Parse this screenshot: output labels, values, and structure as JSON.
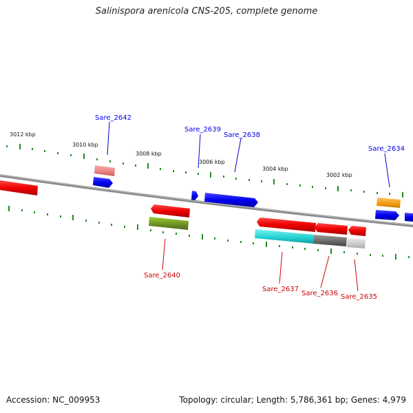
{
  "title": "Salinispora arenicola CNS-205, complete genome",
  "footer": {
    "accession": "Accession: NC_009953",
    "summary": "Topology: circular; Length: 5,786,361 bp; Genes: 4,979"
  },
  "scale_labels": [
    "3012 kbp",
    "3010 kbp",
    "3008 kbp",
    "3006 kbp",
    "3004 kbp",
    "3002 kbp"
  ],
  "forward_genes": [
    {
      "label": "Sare_2642",
      "color": "#0000ee"
    },
    {
      "label": "Sare_2639",
      "color": "#0000ee"
    },
    {
      "label": "Sare_2638",
      "color": "#0000ee"
    },
    {
      "label": "Sare_2634",
      "color": "#0000ee"
    }
  ],
  "reverse_genes": [
    {
      "label": "Sare_2640",
      "color": "#cc0000"
    },
    {
      "label": "Sare_2637",
      "color": "#cc0000"
    },
    {
      "label": "Sare_2636",
      "color": "#cc0000"
    },
    {
      "label": "Sare_2635",
      "color": "#cc0000"
    }
  ],
  "colors": {
    "backbone": "#888888",
    "tick": "#228b22",
    "forward_cds": "#0000ee",
    "reverse_cds": "#ee0000",
    "feature_pink": "#e88080",
    "feature_orange": "#f39c12",
    "feature_olive": "#6b8e23",
    "feature_cyan": "#1fcfcf",
    "feature_darkgray": "#666666",
    "feature_lightgray": "#c8c8c8"
  }
}
